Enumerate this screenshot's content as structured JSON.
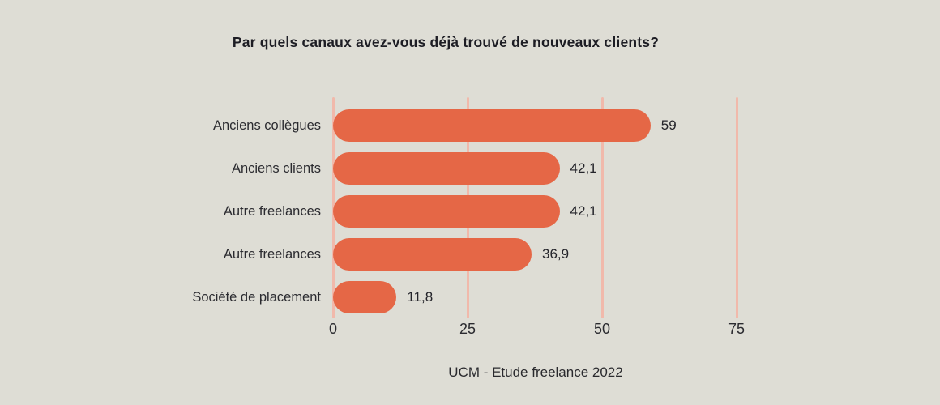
{
  "chart_data": {
    "type": "bar",
    "orientation": "horizontal",
    "title": "Par quels canaux avez-vous déjà trouvé de nouveaux clients?",
    "caption": "UCM - Etude freelance 2022",
    "categories": [
      "Anciens collègues",
      "Anciens clients",
      "Autre freelances",
      "Autre freelances",
      "Société de placement"
    ],
    "values": [
      59,
      42.1,
      42.1,
      36.9,
      11.8
    ],
    "value_labels": [
      "59",
      "42,1",
      "42,1",
      "36,9",
      "11,8"
    ],
    "xlabel": "",
    "ylabel": "",
    "xlim": [
      0,
      75
    ],
    "x_ticks": [
      0,
      25,
      50,
      75
    ],
    "x_tick_labels": [
      "0",
      "25",
      "50",
      "75"
    ],
    "grid": true,
    "legend": false,
    "colors": {
      "bar": "#e56746",
      "gridline": "#f1b9ab",
      "background": "#deddd5",
      "text": "#24242a"
    }
  }
}
